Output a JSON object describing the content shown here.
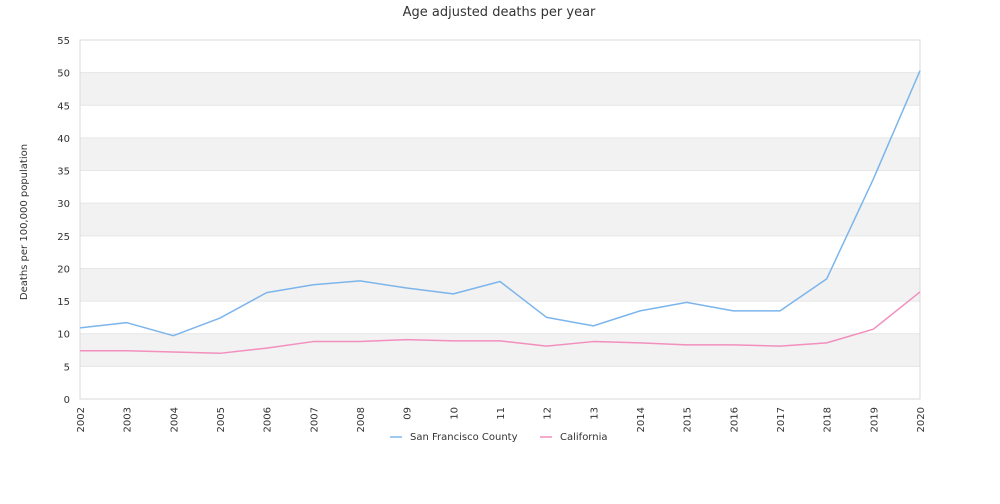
{
  "chart_data": {
    "type": "line",
    "title": "Age adjusted deaths per year",
    "xlabel": "",
    "ylabel": "Deaths per 100,000 population",
    "categories": [
      "2002",
      "2003",
      "2004",
      "2005",
      "2006",
      "2007",
      "2008",
      "09",
      "10",
      "11",
      "12",
      "13",
      "2014",
      "2015",
      "2016",
      "2017",
      "2018",
      "2019",
      "2020"
    ],
    "ylim": [
      0,
      55
    ],
    "yticks": [
      0,
      5,
      10,
      15,
      20,
      25,
      30,
      35,
      40,
      45,
      50,
      55
    ],
    "grid": "alternating horizontal bands",
    "legend_placement": "bottom-center",
    "series": [
      {
        "name": "San Francisco County",
        "color": "#7cb5ec",
        "values": [
          10.9,
          11.7,
          9.7,
          12.4,
          16.3,
          17.5,
          18.1,
          17.0,
          16.1,
          18.0,
          12.5,
          11.2,
          13.5,
          14.8,
          13.5,
          13.5,
          18.4,
          33.7,
          50.3
        ]
      },
      {
        "name": "California",
        "color": "#f28fbd",
        "values": [
          7.4,
          7.4,
          7.2,
          7.0,
          7.8,
          8.8,
          8.8,
          9.1,
          8.9,
          8.9,
          8.1,
          8.8,
          8.6,
          8.3,
          8.3,
          8.1,
          8.6,
          10.7,
          16.4
        ]
      }
    ]
  }
}
